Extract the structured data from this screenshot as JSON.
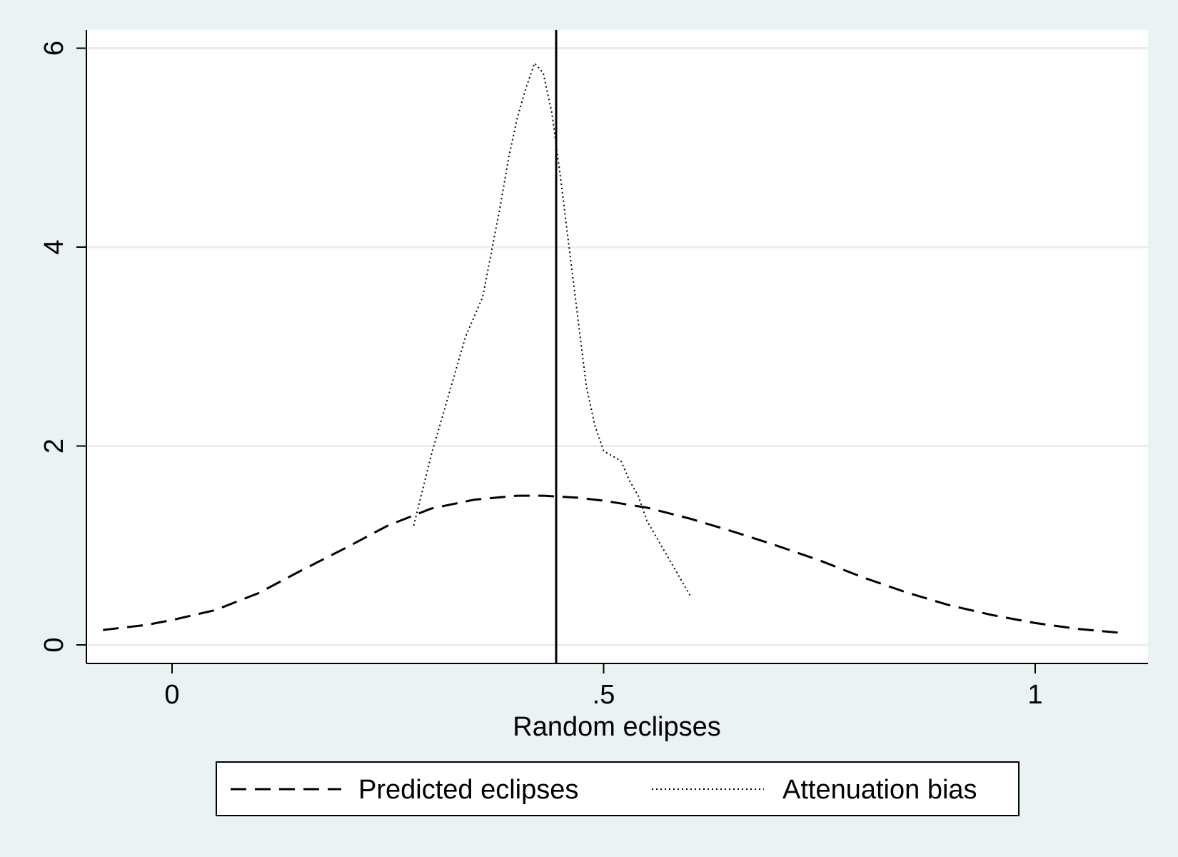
{
  "chart_data": {
    "type": "line",
    "title": "",
    "xlabel": "Random eclipses",
    "ylabel": "",
    "xlim": [
      -0.1,
      1.13
    ],
    "ylim": [
      -0.1,
      6.2
    ],
    "x_ticks": [
      0,
      0.5,
      1
    ],
    "x_tick_labels": [
      "0",
      ".5",
      "1"
    ],
    "y_ticks": [
      0,
      2,
      4,
      6
    ],
    "y_tick_labels": [
      "0",
      "2",
      "4",
      "6"
    ],
    "grid": "horizontal",
    "reference_line_x": 0.445,
    "legend": {
      "placement": "bottom",
      "entries": [
        "Predicted eclipses",
        "Attenuation bias"
      ]
    },
    "series": [
      {
        "name": "Predicted eclipses",
        "style": "dashed",
        "x": [
          -0.08,
          -0.03,
          0.0,
          0.05,
          0.1,
          0.15,
          0.2,
          0.25,
          0.3,
          0.35,
          0.4,
          0.43,
          0.47,
          0.5,
          0.55,
          0.6,
          0.65,
          0.7,
          0.75,
          0.8,
          0.85,
          0.9,
          0.95,
          1.0,
          1.05,
          1.1
        ],
        "y": [
          0.15,
          0.2,
          0.25,
          0.35,
          0.52,
          0.75,
          0.97,
          1.2,
          1.37,
          1.46,
          1.5,
          1.5,
          1.48,
          1.45,
          1.38,
          1.27,
          1.14,
          1.0,
          0.85,
          0.68,
          0.53,
          0.4,
          0.3,
          0.22,
          0.16,
          0.12
        ]
      },
      {
        "name": "Attenuation bias",
        "style": "dotted",
        "x": [
          0.28,
          0.3,
          0.32,
          0.34,
          0.36,
          0.38,
          0.39,
          0.4,
          0.41,
          0.42,
          0.43,
          0.44,
          0.45,
          0.46,
          0.47,
          0.48,
          0.49,
          0.5,
          0.51,
          0.52,
          0.53,
          0.54,
          0.55,
          0.57,
          0.6
        ],
        "y": [
          1.2,
          1.9,
          2.5,
          3.1,
          3.5,
          4.4,
          4.9,
          5.3,
          5.6,
          5.85,
          5.75,
          5.35,
          4.7,
          4.0,
          3.3,
          2.6,
          2.2,
          1.95,
          1.9,
          1.85,
          1.65,
          1.5,
          1.25,
          0.95,
          0.5
        ]
      }
    ]
  }
}
